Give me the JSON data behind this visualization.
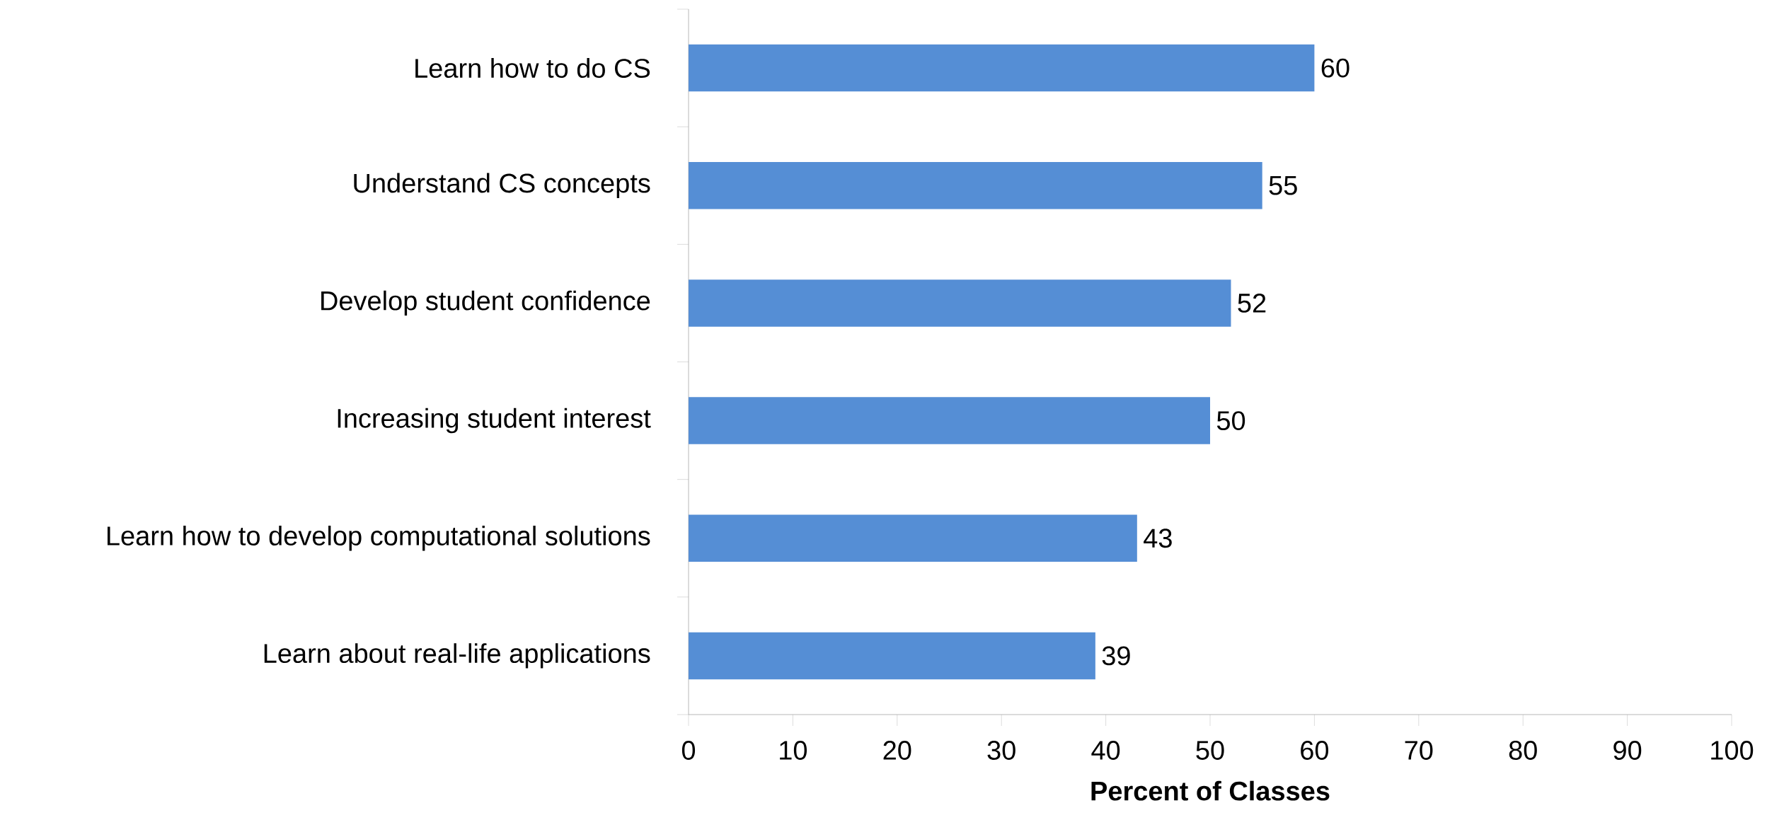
{
  "chart_data": {
    "type": "bar",
    "orientation": "horizontal",
    "xlabel": "Percent of Classes",
    "categories": [
      "Learn how to do CS",
      "Understand CS concepts",
      "Develop student confidence",
      "Increasing student interest",
      "Learn how to develop computational solutions",
      "Learn about real-life applications"
    ],
    "values": [
      60,
      55,
      52,
      50,
      43,
      39
    ],
    "color": "#558ed5",
    "xlim": [
      0,
      100
    ],
    "xticks": [
      0,
      10,
      20,
      30,
      40,
      50,
      60,
      70,
      80,
      90,
      100
    ],
    "data_labels": true
  }
}
